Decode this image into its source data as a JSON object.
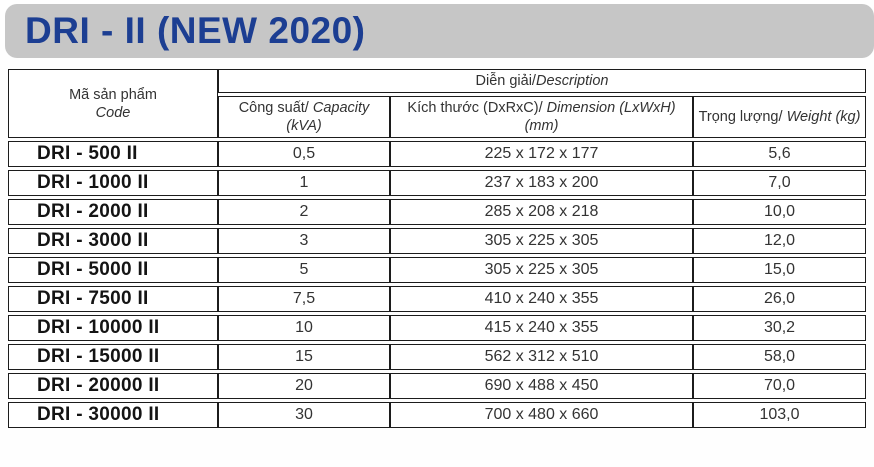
{
  "title": "DRI - II (NEW 2020)",
  "colors": {
    "title_text": "#1c3e92",
    "banner_bg": "#c6c6c6",
    "table_border": "#1c1c1c"
  },
  "table": {
    "headers": {
      "code_vi": "Mã sản phẩm",
      "code_en": "Code",
      "description_vi": "Diễn giải/",
      "description_en": "Description",
      "capacity_vi": "Công suất/",
      "capacity_en": "Capacity",
      "capacity_unit": "(kVA)",
      "dimension_vi": "Kích thước (DxRxC)/",
      "dimension_en": "Dimension (LxWxH)",
      "dimension_unit": "(mm)",
      "weight_vi": "Trọng lượng/",
      "weight_en": "Weight (kg)"
    },
    "rows": [
      {
        "code": "DRI - 500 II",
        "capacity": "0,5",
        "dimension": "225 x 172 x 177",
        "weight": "5,6"
      },
      {
        "code": "DRI - 1000 II",
        "capacity": "1",
        "dimension": "237 x 183 x 200",
        "weight": "7,0"
      },
      {
        "code": "DRI - 2000 II",
        "capacity": "2",
        "dimension": "285 x 208 x 218",
        "weight": "10,0"
      },
      {
        "code": "DRI - 3000 II",
        "capacity": "3",
        "dimension": "305 x 225 x 305",
        "weight": "12,0"
      },
      {
        "code": "DRI - 5000 II",
        "capacity": "5",
        "dimension": "305 x 225 x 305",
        "weight": "15,0"
      },
      {
        "code": "DRI - 7500 II",
        "capacity": "7,5",
        "dimension": "410 x 240 x 355",
        "weight": "26,0"
      },
      {
        "code": "DRI - 10000 II",
        "capacity": "10",
        "dimension": "415 x 240 x 355",
        "weight": "30,2"
      },
      {
        "code": "DRI - 15000 II",
        "capacity": "15",
        "dimension": "562 x 312 x 510",
        "weight": "58,0"
      },
      {
        "code": "DRI - 20000 II",
        "capacity": "20",
        "dimension": "690 x 488 x 450",
        "weight": "70,0"
      },
      {
        "code": "DRI - 30000 II",
        "capacity": "30",
        "dimension": "700 x 480 x 660",
        "weight": "103,0"
      }
    ]
  }
}
